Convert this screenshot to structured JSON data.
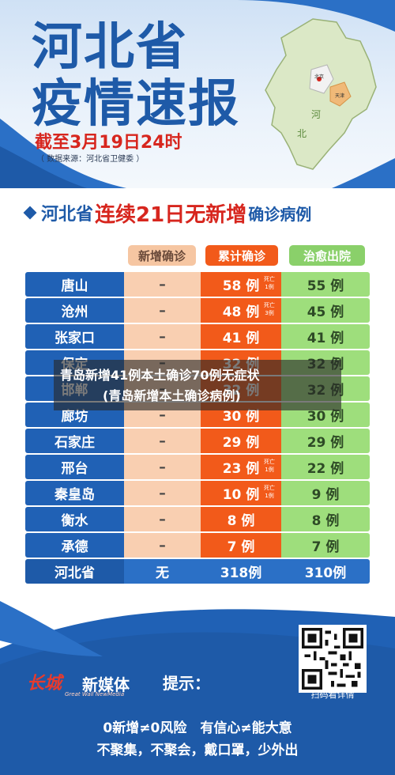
{
  "header": {
    "title_line1": "河北省",
    "title_line2": "疫情速报",
    "date_line": "截至3月19日24时",
    "source_line": "（ 数据来源：河北省卫健委 ）",
    "map_labels": {
      "province_1": "河",
      "province_2": "北",
      "beijing": "北京",
      "tianjin": "天津"
    }
  },
  "subtitle": {
    "prefix": "河北省",
    "highlight": "连续21日无新增",
    "suffix": "确诊病例"
  },
  "table": {
    "headers": {
      "new": "新增确诊",
      "total": "累计确诊",
      "cured": "治愈出院"
    },
    "rows": [
      {
        "city": "唐山",
        "new": "–",
        "total": "58 例",
        "death": "死亡1例",
        "death_a": "死亡",
        "death_b": "1例",
        "cured": "55 例"
      },
      {
        "city": "沧州",
        "new": "–",
        "total": "48 例",
        "death": "死亡3例",
        "death_a": "死亡",
        "death_b": "3例",
        "cured": "45 例"
      },
      {
        "city": "张家口",
        "new": "–",
        "total": "41 例",
        "death": "",
        "death_a": "",
        "death_b": "",
        "cured": "41 例"
      },
      {
        "city": "保定",
        "new": "–",
        "total": "32 例",
        "death": "",
        "death_a": "",
        "death_b": "",
        "cured": "32 例"
      },
      {
        "city": "邯郸",
        "new": "–",
        "total": "32 例",
        "death": "",
        "death_a": "",
        "death_b": "",
        "cured": "32 例"
      },
      {
        "city": "廊坊",
        "new": "–",
        "total": "30 例",
        "death": "",
        "death_a": "",
        "death_b": "",
        "cured": "30 例"
      },
      {
        "city": "石家庄",
        "new": "–",
        "total": "29 例",
        "death": "",
        "death_a": "",
        "death_b": "",
        "cured": "29 例"
      },
      {
        "city": "邢台",
        "new": "–",
        "total": "23 例",
        "death": "死亡1例",
        "death_a": "死亡",
        "death_b": "1例",
        "cured": "22 例"
      },
      {
        "city": "秦皇岛",
        "new": "–",
        "total": "10 例",
        "death": "死亡1例",
        "death_a": "死亡",
        "death_b": "1例",
        "cured": "9 例"
      },
      {
        "city": "衡水",
        "new": "–",
        "total": "8 例",
        "death": "",
        "death_a": "",
        "death_b": "",
        "cured": "8 例"
      },
      {
        "city": "承德",
        "new": "–",
        "total": "7 例",
        "death": "",
        "death_a": "",
        "death_b": "",
        "cured": "7 例"
      }
    ],
    "total_row": {
      "city": "河北省",
      "new": "无",
      "total": "318例",
      "cured": "310例"
    }
  },
  "overlay": {
    "line1": "青岛新增41例本土确诊70例无症状",
    "line2": "(青岛新增本土确诊病例)"
  },
  "footer": {
    "logo_mark": "长城",
    "logo_name": "新媒体",
    "logo_en": "Great Wall NewMedia",
    "hint_label": "提示：",
    "qr_caption": "扫码看详情",
    "slogan_line1": "0新增≠0风险　有信心≠能大意",
    "slogan_line2": "不聚集，不聚会，戴口罩，少外出"
  },
  "colors": {
    "primary_blue": "#1e5aa8",
    "accent_red": "#d7261e",
    "total_orange": "#f25a1a",
    "cured_green": "#9ede7c",
    "new_peach": "#f9cfb1"
  }
}
